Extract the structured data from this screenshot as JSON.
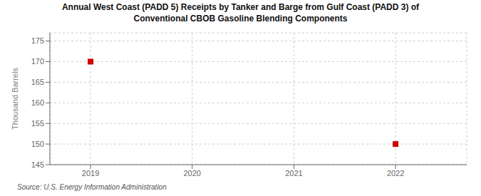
{
  "chart_data": {
    "type": "scatter",
    "title": "Annual West Coast (PADD 5) Receipts by Tanker and Barge from Gulf Coast (PADD 3) of\nConventional CBOB Gasoline Blending Components",
    "ylabel": "Thousand Barrels",
    "annotations": [
      "Source: U.S. Energy Information Administration"
    ],
    "x": [
      2019,
      2022
    ],
    "values": [
      170,
      150
    ],
    "color": "#cc0000",
    "marker": "square",
    "xlim": [
      2018.6,
      2022.7
    ],
    "ylim": [
      145,
      177
    ],
    "xticks": [
      2019,
      2020,
      2021,
      2022
    ],
    "yticks": [
      145,
      150,
      155,
      160,
      165,
      170,
      175
    ],
    "grid": true
  }
}
